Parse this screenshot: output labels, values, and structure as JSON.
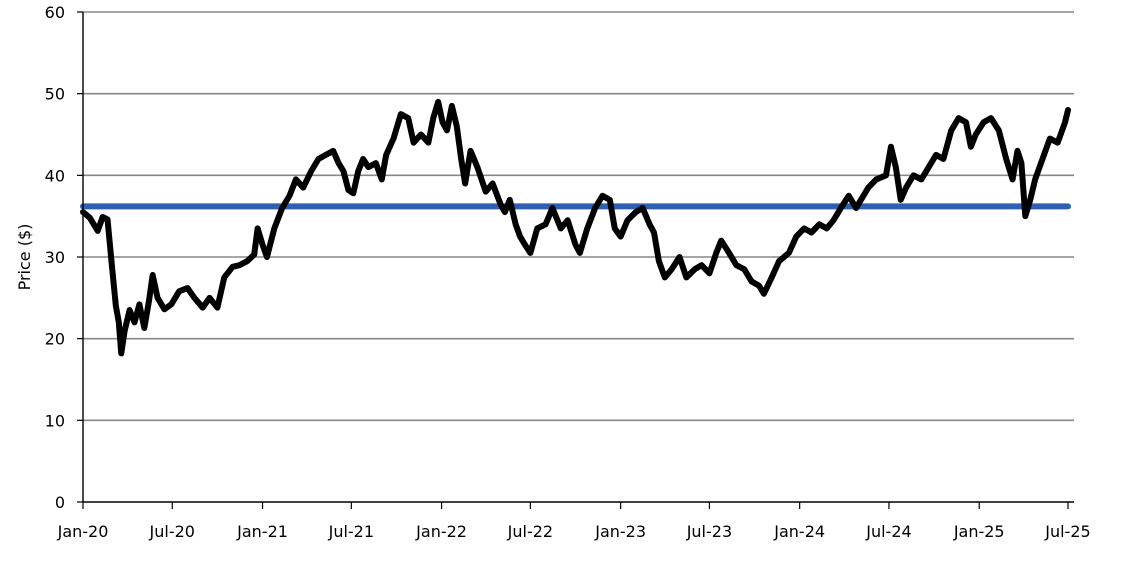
{
  "chart_data": {
    "type": "line",
    "ylabel": "Price ($)",
    "xlabel": "",
    "ylim": [
      0,
      60
    ],
    "xlim": [
      "2020-01-01",
      "2025-07-01"
    ],
    "yticks": [
      0,
      10,
      20,
      30,
      40,
      50,
      60
    ],
    "xticks": [
      {
        "date": "2020-01-01",
        "label": "Jan-20"
      },
      {
        "date": "2020-07-01",
        "label": "Jul-20"
      },
      {
        "date": "2021-01-01",
        "label": "Jan-21"
      },
      {
        "date": "2021-07-01",
        "label": "Jul-21"
      },
      {
        "date": "2022-01-01",
        "label": "Jan-22"
      },
      {
        "date": "2022-07-01",
        "label": "Jul-22"
      },
      {
        "date": "2023-01-01",
        "label": "Jan-23"
      },
      {
        "date": "2023-07-01",
        "label": "Jul-23"
      },
      {
        "date": "2024-01-01",
        "label": "Jan-24"
      },
      {
        "date": "2024-07-01",
        "label": "Jul-24"
      },
      {
        "date": "2025-01-01",
        "label": "Jan-25"
      },
      {
        "date": "2025-07-01",
        "label": "Jul-25"
      }
    ],
    "grid": "horizontal",
    "series": [
      {
        "color": "#000000",
        "points": [
          [
            "2020-01-01",
            35.5
          ],
          [
            "2020-01-15",
            34.8
          ],
          [
            "2020-01-31",
            33.2
          ],
          [
            "2020-02-10",
            34.9
          ],
          [
            "2020-02-20",
            34.6
          ],
          [
            "2020-02-28",
            29.5
          ],
          [
            "2020-03-08",
            24.0
          ],
          [
            "2020-03-14",
            22.0
          ],
          [
            "2020-03-19",
            18.2
          ],
          [
            "2020-03-26",
            21.0
          ],
          [
            "2020-04-05",
            23.5
          ],
          [
            "2020-04-15",
            22.0
          ],
          [
            "2020-04-25",
            24.2
          ],
          [
            "2020-05-05",
            21.3
          ],
          [
            "2020-05-15",
            24.8
          ],
          [
            "2020-05-22",
            27.8
          ],
          [
            "2020-06-01",
            25.0
          ],
          [
            "2020-06-15",
            23.6
          ],
          [
            "2020-06-29",
            24.2
          ],
          [
            "2020-07-15",
            25.8
          ],
          [
            "2020-08-01",
            26.2
          ],
          [
            "2020-08-15",
            25.0
          ],
          [
            "2020-09-01",
            23.8
          ],
          [
            "2020-09-15",
            25.0
          ],
          [
            "2020-10-01",
            23.8
          ],
          [
            "2020-10-15",
            27.5
          ],
          [
            "2020-11-01",
            28.8
          ],
          [
            "2020-11-15",
            29.0
          ],
          [
            "2020-12-01",
            29.5
          ],
          [
            "2020-12-15",
            30.3
          ],
          [
            "2020-12-22",
            33.5
          ],
          [
            "2021-01-01",
            31.5
          ],
          [
            "2021-01-10",
            30.0
          ],
          [
            "2021-01-25",
            33.5
          ],
          [
            "2021-02-10",
            36.0
          ],
          [
            "2021-02-25",
            37.5
          ],
          [
            "2021-03-10",
            39.5
          ],
          [
            "2021-03-25",
            38.5
          ],
          [
            "2021-04-10",
            40.5
          ],
          [
            "2021-04-25",
            42.0
          ],
          [
            "2021-05-10",
            42.5
          ],
          [
            "2021-05-25",
            43.0
          ],
          [
            "2021-06-05",
            41.5
          ],
          [
            "2021-06-15",
            40.5
          ],
          [
            "2021-06-25",
            38.2
          ],
          [
            "2021-07-05",
            37.8
          ],
          [
            "2021-07-15",
            40.5
          ],
          [
            "2021-07-25",
            42.0
          ],
          [
            "2021-08-05",
            41.0
          ],
          [
            "2021-08-20",
            41.5
          ],
          [
            "2021-09-01",
            39.5
          ],
          [
            "2021-09-10",
            42.5
          ],
          [
            "2021-09-25",
            44.5
          ],
          [
            "2021-10-10",
            47.5
          ],
          [
            "2021-10-25",
            47.0
          ],
          [
            "2021-11-05",
            44.0
          ],
          [
            "2021-11-20",
            45.0
          ],
          [
            "2021-12-05",
            44.0
          ],
          [
            "2021-12-15",
            47.0
          ],
          [
            "2021-12-25",
            49.0
          ],
          [
            "2022-01-03",
            46.5
          ],
          [
            "2022-01-12",
            45.5
          ],
          [
            "2022-01-22",
            48.5
          ],
          [
            "2022-02-01",
            46.0
          ],
          [
            "2022-02-10",
            42.0
          ],
          [
            "2022-02-18",
            39.0
          ],
          [
            "2022-03-01",
            43.0
          ],
          [
            "2022-03-15",
            41.0
          ],
          [
            "2022-04-01",
            38.0
          ],
          [
            "2022-04-15",
            39.0
          ],
          [
            "2022-05-01",
            36.5
          ],
          [
            "2022-05-10",
            35.5
          ],
          [
            "2022-05-20",
            37.0
          ],
          [
            "2022-06-01",
            34.0
          ],
          [
            "2022-06-10",
            32.5
          ],
          [
            "2022-06-20",
            31.5
          ],
          [
            "2022-07-01",
            30.5
          ],
          [
            "2022-07-15",
            33.5
          ],
          [
            "2022-08-01",
            34.0
          ],
          [
            "2022-08-15",
            36.0
          ],
          [
            "2022-09-01",
            33.5
          ],
          [
            "2022-09-15",
            34.5
          ],
          [
            "2022-10-01",
            31.5
          ],
          [
            "2022-10-10",
            30.5
          ],
          [
            "2022-10-25",
            33.5
          ],
          [
            "2022-11-10",
            36.0
          ],
          [
            "2022-11-25",
            37.5
          ],
          [
            "2022-12-10",
            37.0
          ],
          [
            "2022-12-20",
            33.5
          ],
          [
            "2023-01-01",
            32.5
          ],
          [
            "2023-01-15",
            34.5
          ],
          [
            "2023-02-01",
            35.5
          ],
          [
            "2023-02-15",
            36.0
          ],
          [
            "2023-03-01",
            34.0
          ],
          [
            "2023-03-10",
            33.0
          ],
          [
            "2023-03-20",
            29.5
          ],
          [
            "2023-04-01",
            27.5
          ],
          [
            "2023-04-15",
            28.5
          ],
          [
            "2023-05-01",
            30.0
          ],
          [
            "2023-05-15",
            27.5
          ],
          [
            "2023-06-01",
            28.5
          ],
          [
            "2023-06-15",
            29.0
          ],
          [
            "2023-07-01",
            28.0
          ],
          [
            "2023-07-15",
            30.5
          ],
          [
            "2023-07-25",
            32.0
          ],
          [
            "2023-08-10",
            30.5
          ],
          [
            "2023-08-25",
            29.0
          ],
          [
            "2023-09-10",
            28.5
          ],
          [
            "2023-09-25",
            27.0
          ],
          [
            "2023-10-10",
            26.5
          ],
          [
            "2023-10-20",
            25.5
          ],
          [
            "2023-11-05",
            27.5
          ],
          [
            "2023-11-20",
            29.5
          ],
          [
            "2023-12-10",
            30.5
          ],
          [
            "2023-12-25",
            32.5
          ],
          [
            "2024-01-10",
            33.5
          ],
          [
            "2024-01-25",
            33.0
          ],
          [
            "2024-02-10",
            34.0
          ],
          [
            "2024-02-25",
            33.5
          ],
          [
            "2024-03-10",
            34.5
          ],
          [
            "2024-03-25",
            36.0
          ],
          [
            "2024-04-10",
            37.5
          ],
          [
            "2024-04-25",
            36.0
          ],
          [
            "2024-05-05",
            37.0
          ],
          [
            "2024-05-20",
            38.5
          ],
          [
            "2024-06-05",
            39.5
          ],
          [
            "2024-06-25",
            40.0
          ],
          [
            "2024-07-05",
            43.5
          ],
          [
            "2024-07-15",
            41.0
          ],
          [
            "2024-07-25",
            37.0
          ],
          [
            "2024-08-05",
            38.5
          ],
          [
            "2024-08-20",
            40.0
          ],
          [
            "2024-09-05",
            39.5
          ],
          [
            "2024-09-20",
            41.0
          ],
          [
            "2024-10-05",
            42.5
          ],
          [
            "2024-10-20",
            42.0
          ],
          [
            "2024-11-05",
            45.5
          ],
          [
            "2024-11-20",
            47.0
          ],
          [
            "2024-12-05",
            46.5
          ],
          [
            "2024-12-15",
            43.5
          ],
          [
            "2024-12-25",
            45.0
          ],
          [
            "2025-01-10",
            46.5
          ],
          [
            "2025-01-25",
            47.0
          ],
          [
            "2025-02-10",
            45.5
          ],
          [
            "2025-02-25",
            42.0
          ],
          [
            "2025-03-10",
            39.5
          ],
          [
            "2025-03-20",
            43.0
          ],
          [
            "2025-03-28",
            41.5
          ],
          [
            "2025-04-05",
            35.0
          ],
          [
            "2025-04-15",
            37.0
          ],
          [
            "2025-04-25",
            39.5
          ],
          [
            "2025-05-10",
            42.0
          ],
          [
            "2025-05-25",
            44.5
          ],
          [
            "2025-06-10",
            44.0
          ],
          [
            "2025-06-25",
            46.5
          ],
          [
            "2025-07-01",
            48.0
          ]
        ]
      },
      {
        "color": "#2f5fb3",
        "points": [
          [
            "2020-01-01",
            36.2
          ],
          [
            "2025-07-01",
            36.2
          ]
        ]
      }
    ]
  }
}
